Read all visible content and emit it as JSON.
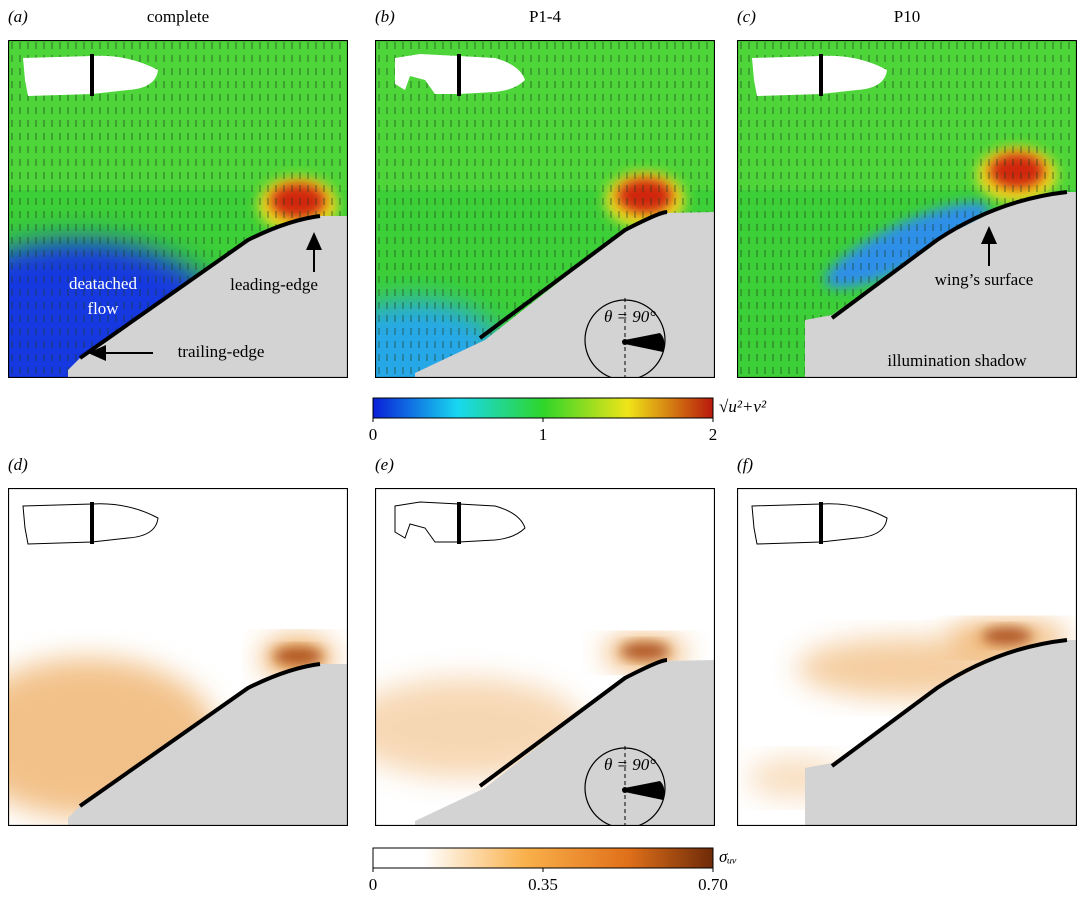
{
  "panels": [
    {
      "label": "(a)",
      "title": "complete",
      "annotations": [
        "deatached",
        "flow",
        "leading-edge",
        "trailing-edge"
      ]
    },
    {
      "label": "(b)",
      "title": "P1-4",
      "annotations": [
        "θ = 90°"
      ]
    },
    {
      "label": "(c)",
      "title": "P10",
      "annotations": [
        "wing’s surface",
        "illumination shadow"
      ]
    },
    {
      "label": "(d)"
    },
    {
      "label": "(e)",
      "annotations": [
        "θ = 90°"
      ]
    },
    {
      "label": "(f)"
    }
  ],
  "colorbars": [
    {
      "label": "√u²+v²",
      "lim": [
        0,
        2
      ],
      "ticks": [
        0,
        1,
        2
      ]
    },
    {
      "label": "σᵤᵥ",
      "lim": [
        0,
        0.7
      ],
      "ticks": [
        0,
        0.35,
        {
          "value": 0.7,
          "label": "0.70"
        }
      ]
    }
  ]
}
